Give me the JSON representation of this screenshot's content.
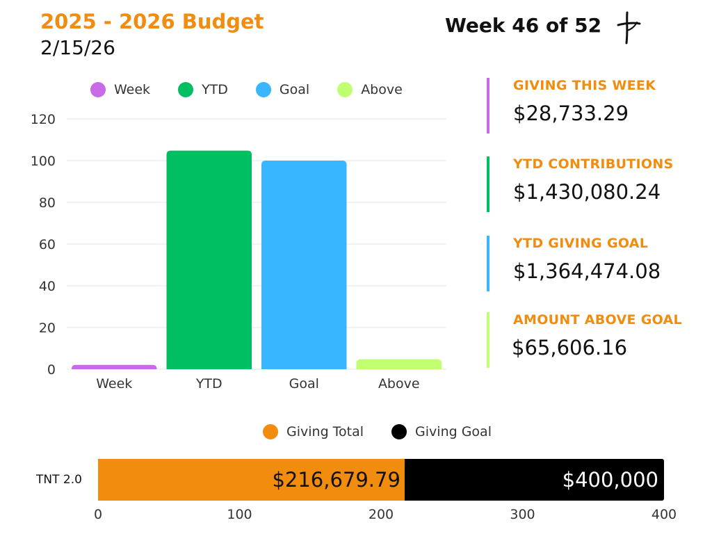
{
  "header": {
    "title": "2025 - 2026 Budget",
    "date": "2/15/26",
    "week": "Week 46 of 52",
    "logo_icon": "cross-logo-icon"
  },
  "colors": {
    "accent": "#F28C0F",
    "week": "#C96BE6",
    "ytd": "#00BF63",
    "goal": "#38B6FF",
    "above": "#C1FF72",
    "giving_total": "#F28C0F",
    "giving_goal": "#000000"
  },
  "stats": [
    {
      "label": "GIVING THIS WEEK",
      "value": "$28,733.29",
      "color": "#C96BE6"
    },
    {
      "label": "YTD CONTRIBUTIONS",
      "value": "$1,430,080.24",
      "color": "#00BF63"
    },
    {
      "label": "YTD GIVING GOAL",
      "value": "$1,364,474.08",
      "color": "#38B6FF"
    },
    {
      "label": "AMOUNT ABOVE GOAL",
      "value": "$65,606.16",
      "color": "#C1FF72"
    }
  ],
  "chart_data": [
    {
      "type": "bar",
      "categories": [
        "Week",
        "YTD",
        "Goal",
        "Above"
      ],
      "values": [
        2.1,
        104.8,
        100,
        4.8
      ],
      "colors": [
        "#C96BE6",
        "#00BF63",
        "#38B6FF",
        "#C1FF72"
      ],
      "legend": [
        "Week",
        "YTD",
        "Goal",
        "Above"
      ],
      "legend_position": "top",
      "ylim": [
        0,
        120
      ],
      "yticks": [
        0,
        20,
        40,
        60,
        80,
        100,
        120
      ],
      "grid": true,
      "title": "",
      "xlabel": "",
      "ylabel": ""
    },
    {
      "type": "bar",
      "orientation": "horizontal",
      "stacked": true,
      "categories": [
        "TNT 2.0"
      ],
      "series": [
        {
          "name": "Giving Total",
          "value": 216.67979,
          "label": "$216,679.79",
          "color": "#F28C0F"
        },
        {
          "name": "Giving Goal",
          "value": 400,
          "label": "$400,000",
          "color": "#000000"
        }
      ],
      "legend_position": "top",
      "xlim": [
        0,
        400
      ],
      "xticks": [
        0,
        100,
        200,
        300,
        400
      ],
      "grid": false,
      "title": "",
      "xlabel": "",
      "ylabel": ""
    }
  ]
}
